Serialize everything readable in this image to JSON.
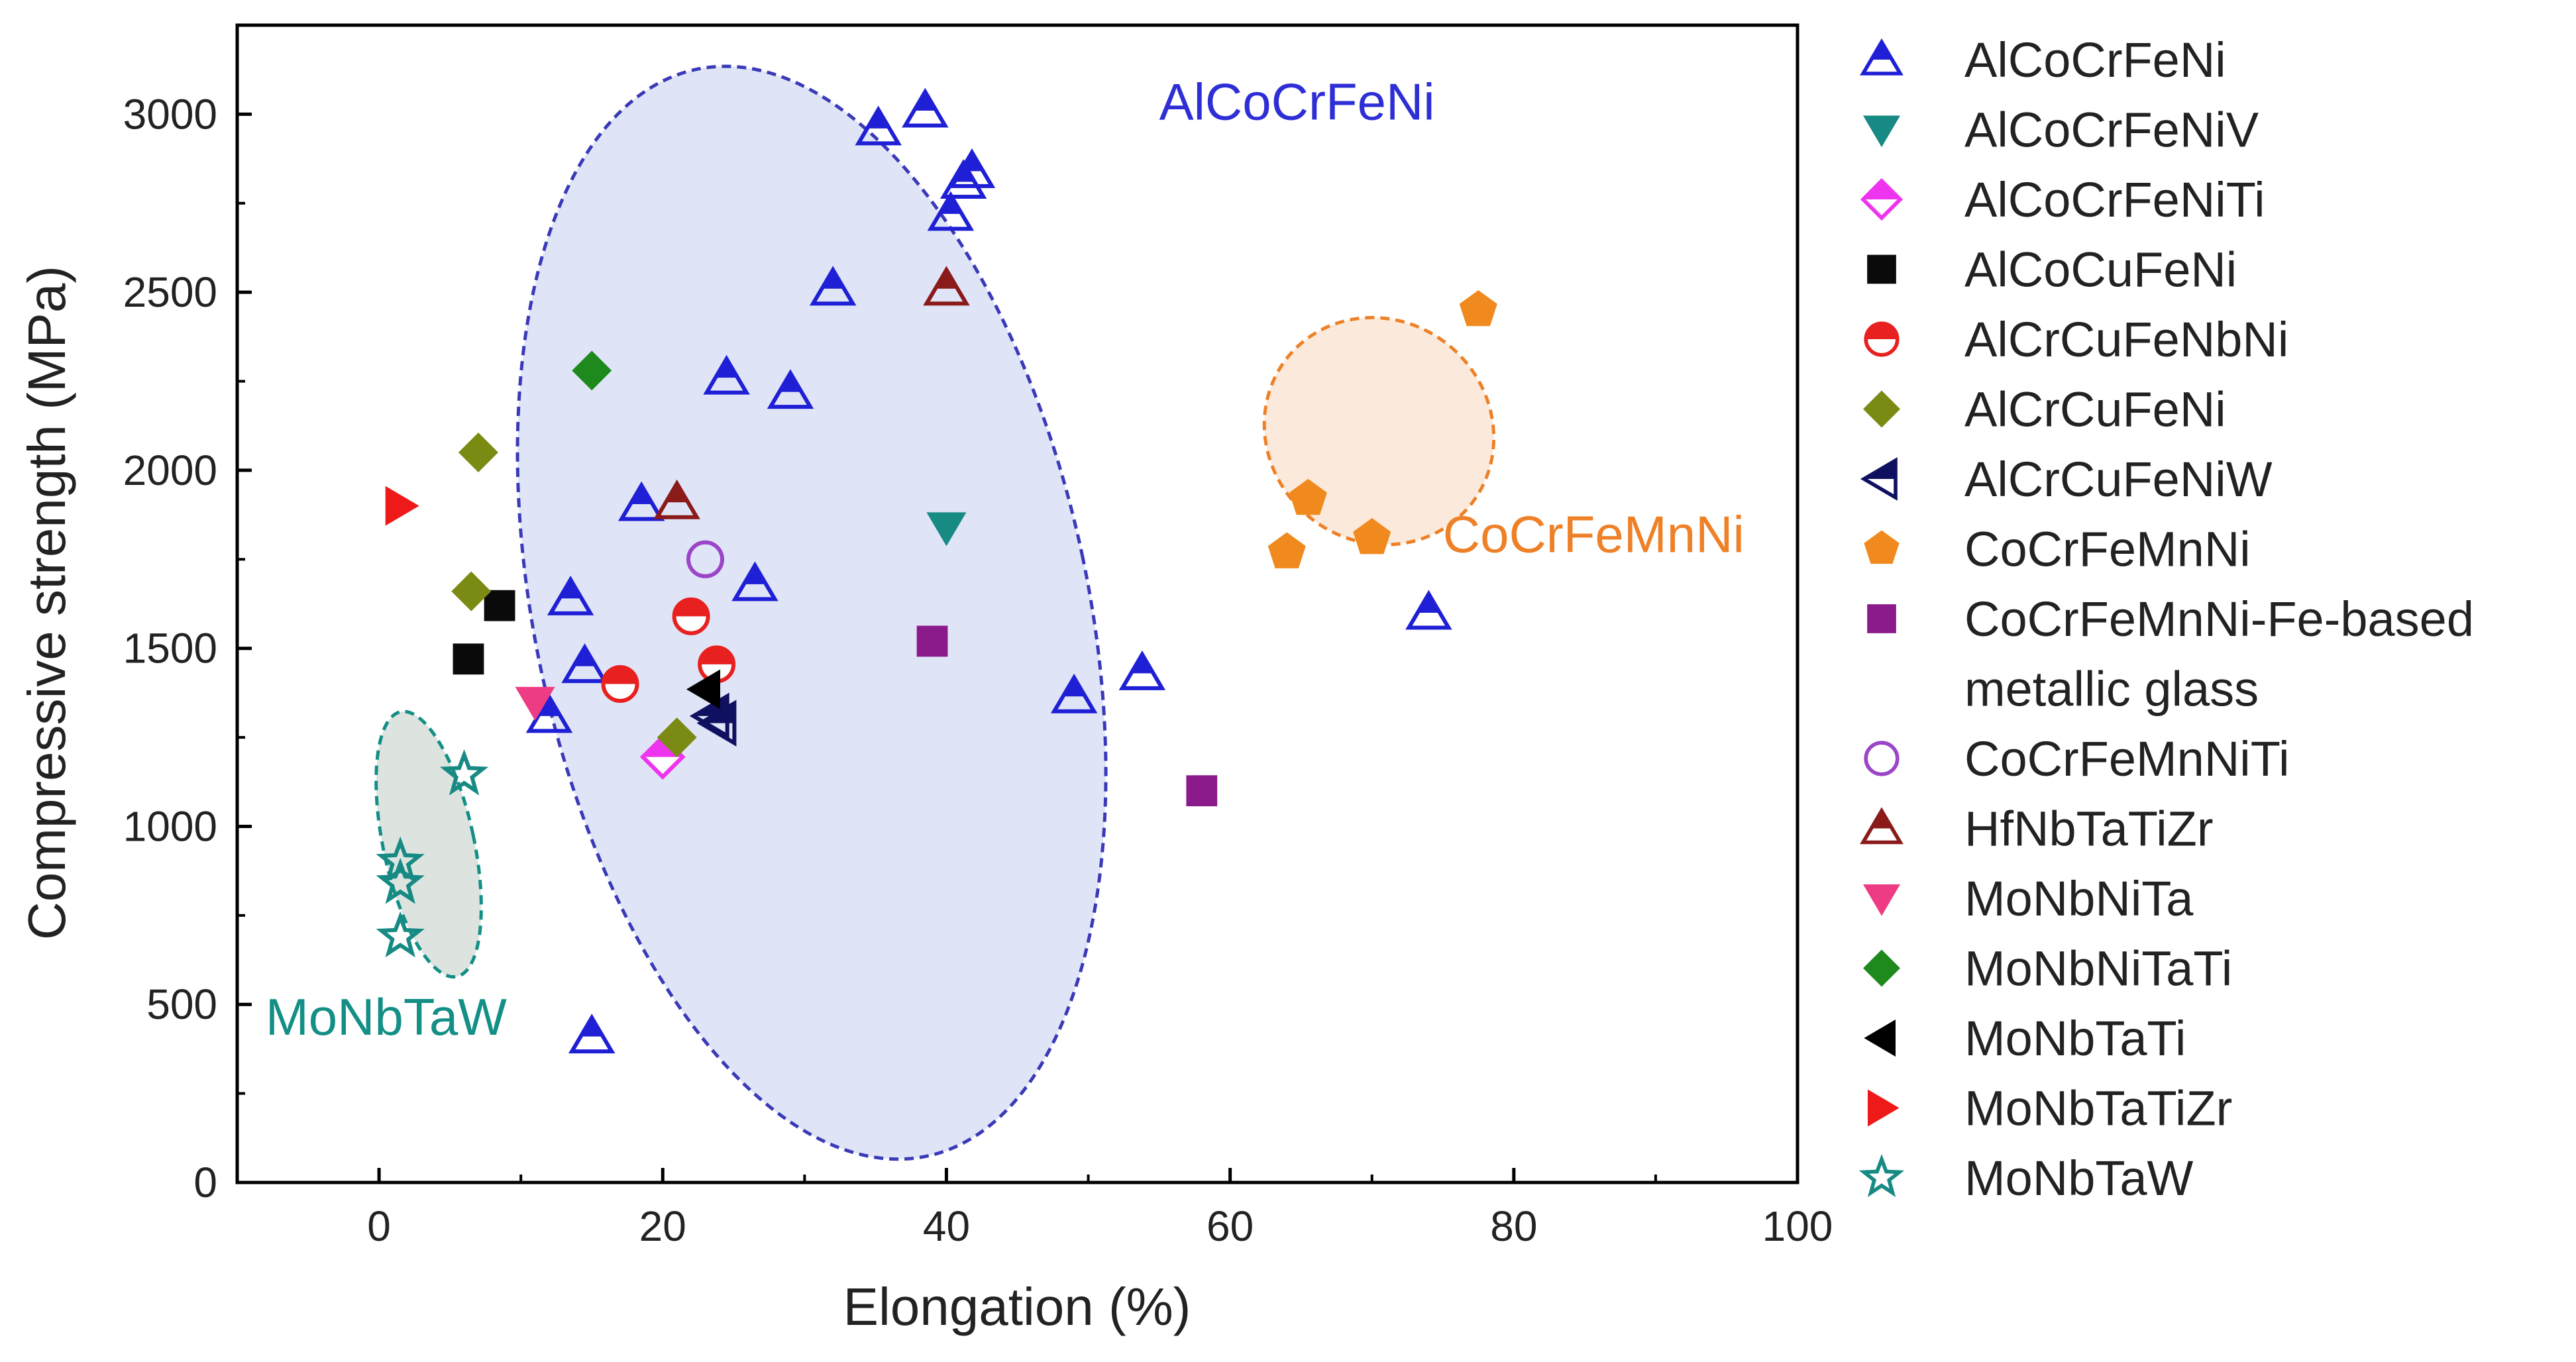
{
  "chart_data": {
    "type": "scatter",
    "title": "",
    "xlabel": "Elongation (%)",
    "ylabel": "Compressive strength (MPa)",
    "xlim": [
      -10,
      100
    ],
    "ylim": [
      0,
      3250
    ],
    "xticks": [
      0,
      20,
      40,
      60,
      80,
      100
    ],
    "yticks": [
      0,
      500,
      1000,
      1500,
      2000,
      2500,
      3000
    ],
    "grid": false,
    "legend_position": "right",
    "groups": [
      {
        "label": "AlCoCrFeNi",
        "color": "#2e2ed6",
        "fill": "#dfe5f7",
        "stroke": "#3a3ab8",
        "center": [
          30.5,
          1600
        ],
        "radii": [
          19.5,
          1560
        ],
        "angle_deg": -12,
        "label_at": [
          55,
          2985
        ]
      },
      {
        "label": "CoCrFeMnNi",
        "color": "#ee8127",
        "fill": "#fbeadb",
        "stroke": "#ee8127",
        "center": [
          70.5,
          2110
        ],
        "radii": [
          7.8,
          330
        ],
        "angle_deg": -50,
        "label_at": [
          75,
          1770
        ]
      },
      {
        "label": "MoNbTaW",
        "color": "#138f86",
        "fill": "#dde4e0",
        "stroke": "#138f86",
        "center": [
          3.5,
          950
        ],
        "radii": [
          3.2,
          380
        ],
        "angle_deg": -12,
        "label_at": [
          -8,
          415
        ]
      }
    ],
    "series": [
      {
        "name": "AlCoCrFeNi",
        "marker": "triangle-up-half",
        "color": "#1f1fd6",
        "points": [
          [
            35.2,
            2960
          ],
          [
            38.5,
            3010
          ],
          [
            40.3,
            2720
          ],
          [
            41.2,
            2810
          ],
          [
            41.8,
            2840
          ],
          [
            32,
            2510
          ],
          [
            24.5,
            2260
          ],
          [
            29,
            2220
          ],
          [
            18.5,
            1905
          ],
          [
            26.5,
            1680
          ],
          [
            13.5,
            1640
          ],
          [
            14.5,
            1450
          ],
          [
            12,
            1310
          ],
          [
            49,
            1365
          ],
          [
            53.8,
            1430
          ],
          [
            74,
            1600
          ],
          [
            15,
            410
          ]
        ]
      },
      {
        "name": "AlCoCrFeNiV",
        "marker": "triangle-down",
        "color": "#168a83",
        "points": [
          [
            40,
            1840
          ]
        ]
      },
      {
        "name": "AlCoCrFeNiTi",
        "marker": "diamond-half",
        "color": "#ee34ee",
        "points": [
          [
            20,
            1195
          ]
        ]
      },
      {
        "name": "AlCoCuFeNi",
        "marker": "square",
        "color": "#0a0a0a",
        "points": [
          [
            8.5,
            1620
          ],
          [
            6.3,
            1470
          ]
        ]
      },
      {
        "name": "AlCrCuFeNbNi",
        "marker": "circle-half",
        "color": "#e82020",
        "points": [
          [
            22,
            1590
          ],
          [
            17,
            1400
          ],
          [
            23.8,
            1455
          ]
        ]
      },
      {
        "name": "AlCrCuFeNi",
        "marker": "diamond",
        "color": "#7a8a12",
        "points": [
          [
            7,
            2050
          ],
          [
            6.5,
            1660
          ],
          [
            21,
            1250
          ]
        ]
      },
      {
        "name": "AlCrCuFeNiW",
        "marker": "triangle-left-half",
        "color": "#101060",
        "points": [
          [
            24,
            1290
          ],
          [
            23.5,
            1310
          ]
        ]
      },
      {
        "name": "CoCrFeMnNi",
        "marker": "pentagon",
        "color": "#f08a1e",
        "points": [
          [
            77.5,
            2450
          ],
          [
            65.5,
            1920
          ],
          [
            64,
            1770
          ],
          [
            70,
            1810
          ]
        ]
      },
      {
        "name": "CoCrFeMnNi-Fe-based metallic glass",
        "marker": "square",
        "color": "#8b1a8b",
        "points": [
          [
            39,
            1520
          ],
          [
            58,
            1100
          ]
        ]
      },
      {
        "name": "CoCrFeMnNiTi",
        "marker": "circle-open",
        "color": "#9b45c8",
        "points": [
          [
            23,
            1750
          ]
        ]
      },
      {
        "name": "HfNbTaTiZr",
        "marker": "triangle-up-half",
        "color": "#8b1a1a",
        "points": [
          [
            40,
            2510
          ],
          [
            21,
            1910
          ]
        ]
      },
      {
        "name": "MoNbNiTa",
        "marker": "triangle-down",
        "color": "#ee3c84",
        "points": [
          [
            11,
            1350
          ]
        ]
      },
      {
        "name": "MoNbNiTaTi",
        "marker": "diamond",
        "color": "#1e8a1e",
        "points": [
          [
            15,
            2280
          ]
        ]
      },
      {
        "name": "MoNbTaTi",
        "marker": "triangle-left",
        "color": "#000000",
        "points": [
          [
            23,
            1385
          ]
        ]
      },
      {
        "name": "MoNbTaTiZr",
        "marker": "triangle-right",
        "color": "#ee1a1a",
        "points": [
          [
            1.5,
            1900
          ]
        ]
      },
      {
        "name": "MoNbTaW",
        "marker": "star",
        "color": "#168a83",
        "points": [
          [
            6,
            1145
          ],
          [
            1.5,
            900
          ],
          [
            1.5,
            840
          ],
          [
            1.5,
            690
          ]
        ]
      }
    ],
    "legend": {
      "entries": [
        {
          "text": "AlCoCrFeNi"
        },
        {
          "text": "AlCoCrFeNiV"
        },
        {
          "text": "AlCoCrFeNiTi"
        },
        {
          "text": "AlCoCuFeNi"
        },
        {
          "text": "AlCrCuFeNbNi"
        },
        {
          "text": "AlCrCuFeNi"
        },
        {
          "text": "AlCrCuFeNiW"
        },
        {
          "text": "CoCrFeMnNi"
        },
        {
          "text": "CoCrFeMnNi-Fe-based",
          "cont": "metallic glass"
        },
        {
          "text": "CoCrFeMnNiTi"
        },
        {
          "text": "HfNbTaTiZr"
        },
        {
          "text": "MoNbNiTa"
        },
        {
          "text": "MoNbNiTaTi"
        },
        {
          "text": "MoNbTaTi"
        },
        {
          "text": "MoNbTaTiZr"
        },
        {
          "text": "MoNbTaW"
        }
      ]
    }
  }
}
